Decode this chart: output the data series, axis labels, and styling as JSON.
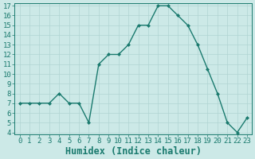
{
  "x": [
    0,
    1,
    2,
    3,
    4,
    5,
    6,
    7,
    8,
    9,
    10,
    11,
    12,
    13,
    14,
    15,
    16,
    17,
    18,
    19,
    20,
    21,
    22,
    23
  ],
  "y": [
    7,
    7,
    7,
    7,
    8,
    7,
    7,
    5,
    11,
    12,
    12,
    13,
    15,
    15,
    17,
    17,
    16,
    15,
    13,
    10.5,
    8,
    5,
    4,
    5.5
  ],
  "line_color": "#1a7a6e",
  "marker": "D",
  "marker_size": 2.0,
  "bg_color": "#cce9e7",
  "grid_color": "#b0d4d2",
  "xlabel": "Humidex (Indice chaleur)",
  "xlim": [
    -0.5,
    23.5
  ],
  "ylim": [
    3.8,
    17.3
  ],
  "yticks": [
    4,
    5,
    6,
    7,
    8,
    9,
    10,
    11,
    12,
    13,
    14,
    15,
    16,
    17
  ],
  "xticks": [
    0,
    1,
    2,
    3,
    4,
    5,
    6,
    7,
    8,
    9,
    10,
    11,
    12,
    13,
    14,
    15,
    16,
    17,
    18,
    19,
    20,
    21,
    22,
    23
  ],
  "tick_fontsize": 6.5,
  "xlabel_fontsize": 8.5
}
